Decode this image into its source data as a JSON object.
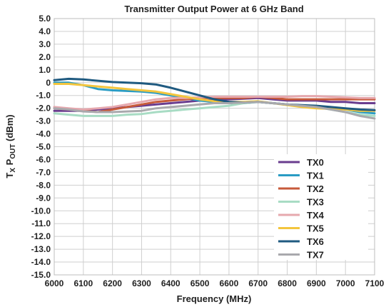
{
  "chart_data": {
    "type": "line",
    "title": "Transmitter Output Power at 6 GHz Band",
    "xlabel": "Frequency (MHz)",
    "ylabel": {
      "main": "T",
      "sub1": "X",
      "mid": " P",
      "sub2": "OUT",
      "tail": " (dBm)"
    },
    "xlim": [
      6000,
      7100
    ],
    "ylim": [
      -15,
      5
    ],
    "xticks": [
      "6000",
      "6100",
      "6200",
      "6300",
      "6400",
      "6500",
      "6600",
      "6700",
      "6800",
      "6900",
      "7000",
      "7100"
    ],
    "yticks": [
      "5.0",
      "4.0",
      "3.0",
      "2.0",
      "1.0",
      "0",
      "-1.0",
      "-2.0",
      "-3.0",
      "-4.0",
      "-5.0",
      "-6.0",
      "-7.0",
      "-8.0",
      "-9.0",
      "-10.0",
      "-11.0",
      "-12.0",
      "-13.0",
      "-14.0",
      "-15.0"
    ],
    "grid": true,
    "legend_position": "bottom-right",
    "x": [
      6000,
      6050,
      6100,
      6150,
      6200,
      6250,
      6300,
      6350,
      6400,
      6450,
      6500,
      6550,
      6600,
      6650,
      6700,
      6750,
      6800,
      6850,
      6900,
      6950,
      7000,
      7050,
      7100
    ],
    "series": [
      {
        "name": "TX0",
        "color": "#6a3d8f",
        "values": [
          -2.2,
          -2.2,
          -2.2,
          -2.1,
          -2.0,
          -1.9,
          -1.8,
          -1.7,
          -1.6,
          -1.5,
          -1.4,
          -1.35,
          -1.3,
          -1.25,
          -1.2,
          -1.3,
          -1.4,
          -1.4,
          -1.4,
          -1.5,
          -1.5,
          -1.6,
          -1.6
        ]
      },
      {
        "name": "TX1",
        "color": "#2a9cc4",
        "values": [
          0.0,
          0.0,
          -0.2,
          -0.5,
          -0.6,
          -0.65,
          -0.7,
          -0.8,
          -1.0,
          -1.2,
          -1.4,
          -1.5,
          -1.6,
          -1.6,
          -1.5,
          -1.6,
          -1.7,
          -1.8,
          -1.9,
          -2.0,
          -2.1,
          -2.3,
          -2.4
        ]
      },
      {
        "name": "TX2",
        "color": "#c75a3a",
        "values": [
          -2.0,
          -2.1,
          -2.2,
          -2.3,
          -2.1,
          -1.9,
          -1.7,
          -1.5,
          -1.4,
          -1.3,
          -1.2,
          -1.2,
          -1.2,
          -1.2,
          -1.1,
          -1.2,
          -1.3,
          -1.3,
          -1.3,
          -1.3,
          -1.3,
          -1.3,
          -1.3
        ]
      },
      {
        "name": "TX3",
        "color": "#a8dcc4",
        "values": [
          -2.4,
          -2.5,
          -2.6,
          -2.6,
          -2.6,
          -2.5,
          -2.45,
          -2.3,
          -2.2,
          -2.1,
          -2.0,
          -1.9,
          -1.8,
          -1.6,
          -1.5,
          -1.6,
          -1.7,
          -1.8,
          -1.9,
          -2.1,
          -2.3,
          -2.5,
          -2.6
        ]
      },
      {
        "name": "TX4",
        "color": "#e6a8ae",
        "values": [
          -1.9,
          -2.0,
          -2.1,
          -2.0,
          -1.9,
          -1.7,
          -1.5,
          -1.3,
          -1.2,
          -1.2,
          -1.15,
          -1.1,
          -1.1,
          -1.1,
          -1.1,
          -1.1,
          -1.1,
          -1.05,
          -1.05,
          -1.1,
          -1.15,
          -1.2,
          -1.2
        ]
      },
      {
        "name": "TX5",
        "color": "#f3c53d",
        "values": [
          -0.1,
          -0.1,
          -0.2,
          -0.3,
          -0.4,
          -0.5,
          -0.6,
          -0.7,
          -0.9,
          -1.1,
          -1.3,
          -1.45,
          -1.5,
          -1.5,
          -1.45,
          -1.6,
          -1.75,
          -1.9,
          -2.0,
          -2.05,
          -2.1,
          -2.2,
          -2.2
        ]
      },
      {
        "name": "TX6",
        "color": "#1f5a80",
        "values": [
          0.2,
          0.3,
          0.25,
          0.15,
          0.05,
          0.0,
          -0.05,
          -0.15,
          -0.4,
          -0.7,
          -1.0,
          -1.3,
          -1.5,
          -1.55,
          -1.5,
          -1.6,
          -1.7,
          -1.75,
          -1.8,
          -1.9,
          -2.0,
          -2.1,
          -2.15
        ]
      },
      {
        "name": "TX7",
        "color": "#a9a9ad",
        "values": [
          -2.0,
          -2.1,
          -2.25,
          -2.3,
          -2.3,
          -2.25,
          -2.2,
          -2.0,
          -1.9,
          -1.8,
          -1.7,
          -1.6,
          -1.6,
          -1.55,
          -1.5,
          -1.6,
          -1.7,
          -1.8,
          -1.9,
          -2.1,
          -2.3,
          -2.6,
          -2.8
        ]
      }
    ]
  }
}
